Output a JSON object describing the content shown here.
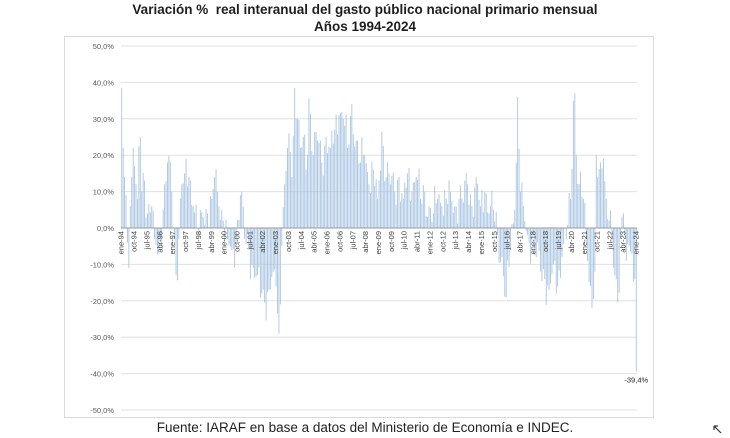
{
  "title_line1": "Variación %  real interanual del gasto público nacional primario mensual",
  "title_line2": "Años 1994-2024",
  "source": "Fuente: IARAF en base a datos del Ministerio de Economía e INDEC.",
  "colors": {
    "bar": "#a8c4e2",
    "gridline": "#e0e0e0",
    "axis_text": "#595959"
  },
  "chart_data": {
    "type": "bar",
    "title": "Variación %  real interanual del gasto público nacional primario mensual\nAños 1994-2024",
    "ylim": [
      -50,
      50
    ],
    "y_tick_step": 10,
    "y_tick_labels": [
      "50,0%",
      "40,0%",
      "30,0%",
      "20,0%",
      "10,0%",
      "0,0%",
      "-10,0%",
      "-20,0%",
      "-30,0%",
      "-40,0%",
      "-50,0%"
    ],
    "grid": "horizontal",
    "x_start": "ene-94",
    "x_tick_labels": [
      "ene-94",
      "oct-94",
      "jul-95",
      "abr-96",
      "ene-97",
      "oct-97",
      "jul-98",
      "abr-99",
      "ene-00",
      "oct-00",
      "jul-01",
      "abr-02",
      "ene-03",
      "oct-03",
      "jul-04",
      "abr-05",
      "ene-06",
      "oct-06",
      "jul-07",
      "abr-08",
      "ene-09",
      "oct-09",
      "jul-10",
      "abr-11",
      "ene-12",
      "oct-12",
      "jul-13",
      "abr-14",
      "ene-15",
      "oct-15",
      "jul-16",
      "abr-17",
      "ene-18",
      "oct-18",
      "jul-19",
      "abr-20",
      "ene-21",
      "oct-21",
      "jul-22",
      "abr-23",
      "ene-24"
    ],
    "anchors": [
      [
        "ene-94",
        38.5
      ],
      [
        "feb-94",
        22
      ],
      [
        "mar-94",
        14
      ],
      [
        "abr-94",
        9
      ],
      [
        "may-94",
        -4
      ],
      [
        "jun-94",
        -11
      ],
      [
        "jul-94",
        6
      ],
      [
        "ago-94",
        14
      ],
      [
        "sep-94",
        22
      ],
      [
        "oct-94",
        17
      ],
      [
        "nov-94",
        12
      ],
      [
        "dic-94",
        8
      ],
      [
        "feb-95",
        25
      ],
      [
        "mar-95",
        10
      ],
      [
        "may-95",
        13
      ],
      [
        "jul-95",
        4
      ],
      [
        "oct-95",
        6
      ],
      [
        "dic-95",
        -3
      ],
      [
        "mar-96",
        -7
      ],
      [
        "jun-96",
        5
      ],
      [
        "sep-96",
        18
      ],
      [
        "dic-96",
        10
      ],
      [
        "mar-97",
        -13
      ],
      [
        "may-97",
        -3
      ],
      [
        "jul-97",
        12
      ],
      [
        "sep-97",
        15
      ],
      [
        "dic-97",
        14
      ],
      [
        "mar-98",
        6
      ],
      [
        "jul-98",
        -2
      ],
      [
        "oct-98",
        3
      ],
      [
        "ene-99",
        4
      ],
      [
        "abr-99",
        8
      ],
      [
        "jun-99",
        14
      ],
      [
        "sep-99",
        6
      ],
      [
        "dic-99",
        2
      ],
      [
        "mar-00",
        -3
      ],
      [
        "jun-00",
        -6
      ],
      [
        "sep-00",
        -4
      ],
      [
        "dic-00",
        9
      ],
      [
        "mar-01",
        -3
      ],
      [
        "jun-01",
        -6
      ],
      [
        "sep-01",
        -11
      ],
      [
        "dic-01",
        -13
      ],
      [
        "mar-02",
        -18
      ],
      [
        "may-02",
        -20.5
      ],
      [
        "ago-02",
        -17
      ],
      [
        "nov-02",
        -12
      ],
      [
        "ene-03",
        -16
      ],
      [
        "mar-03",
        -29
      ],
      [
        "may-03",
        -5
      ],
      [
        "jul-03",
        12
      ],
      [
        "sep-03",
        22
      ],
      [
        "oct-03",
        26
      ],
      [
        "dic-03",
        14
      ],
      [
        "feb-04",
        38.5
      ],
      [
        "abr-04",
        30
      ],
      [
        "jun-04",
        22
      ],
      [
        "ago-04",
        25
      ],
      [
        "oct-04",
        16
      ],
      [
        "dic-04",
        35.5
      ],
      [
        "mar-05",
        20
      ],
      [
        "jun-05",
        24
      ],
      [
        "sep-05",
        18
      ],
      [
        "dic-05",
        25
      ],
      [
        "mar-06",
        22
      ],
      [
        "jun-06",
        27
      ],
      [
        "sep-06",
        31
      ],
      [
        "dic-06",
        30
      ],
      [
        "mar-07",
        22
      ],
      [
        "jun-07",
        34
      ],
      [
        "sep-07",
        24
      ],
      [
        "dic-07",
        18
      ],
      [
        "mar-08",
        20
      ],
      [
        "jun-08",
        12
      ],
      [
        "sep-08",
        16
      ],
      [
        "dic-08",
        8
      ],
      [
        "mar-09",
        26.5
      ],
      [
        "jun-09",
        14
      ],
      [
        "sep-09",
        12
      ],
      [
        "dic-09",
        10
      ],
      [
        "mar-10",
        14
      ],
      [
        "jun-10",
        8
      ],
      [
        "sep-10",
        15
      ],
      [
        "dic-10",
        10
      ],
      [
        "mar-11",
        14
      ],
      [
        "jun-11",
        8
      ],
      [
        "sep-11",
        10
      ],
      [
        "dic-11",
        6
      ],
      [
        "mar-12",
        4
      ],
      [
        "jun-12",
        8
      ],
      [
        "sep-12",
        6
      ],
      [
        "dic-12",
        8
      ],
      [
        "mar-13",
        10
      ],
      [
        "jun-13",
        6
      ],
      [
        "sep-13",
        8
      ],
      [
        "dic-13",
        7
      ],
      [
        "mar-14",
        12
      ],
      [
        "jun-14",
        6
      ],
      [
        "sep-14",
        14
      ],
      [
        "dic-14",
        6
      ],
      [
        "mar-15",
        10
      ],
      [
        "jun-15",
        4
      ],
      [
        "sep-15",
        5
      ],
      [
        "dic-15",
        -2
      ],
      [
        "mar-16",
        -8
      ],
      [
        "jun-16",
        -19
      ],
      [
        "sep-16",
        -6
      ],
      [
        "dic-16",
        5
      ],
      [
        "feb-17",
        36
      ],
      [
        "abr-17",
        10
      ],
      [
        "jun-17",
        6
      ],
      [
        "sep-17",
        -2
      ],
      [
        "dic-17",
        -4
      ],
      [
        "mar-18",
        -8
      ],
      [
        "jun-18",
        -12
      ],
      [
        "sep-18",
        -14
      ],
      [
        "dic-18",
        -17
      ],
      [
        "mar-19",
        -10
      ],
      [
        "jun-19",
        -16
      ],
      [
        "sep-19",
        -8
      ],
      [
        "dic-19",
        -3
      ],
      [
        "mar-20",
        8
      ],
      [
        "may-20",
        35
      ],
      [
        "jun-20",
        37
      ],
      [
        "jul-20",
        20
      ],
      [
        "sep-20",
        12
      ],
      [
        "dic-20",
        8
      ],
      [
        "mar-21",
        -9
      ],
      [
        "jun-21",
        -22
      ],
      [
        "ago-21",
        -12
      ],
      [
        "sep-21",
        20
      ],
      [
        "oct-21",
        14
      ],
      [
        "dic-21",
        18
      ],
      [
        "feb-22",
        19
      ],
      [
        "abr-22",
        8
      ],
      [
        "jun-22",
        2
      ],
      [
        "ago-22",
        -4
      ],
      [
        "oct-22",
        -13
      ],
      [
        "dic-22",
        -20.5
      ],
      [
        "feb-23",
        -3
      ],
      [
        "abr-23",
        4
      ],
      [
        "jun-23",
        -9
      ],
      [
        "ago-23",
        -5
      ],
      [
        "oct-23",
        -7
      ],
      [
        "dic-23",
        -14
      ],
      [
        "ene-24",
        -39.4
      ]
    ],
    "annotations": [
      {
        "at": "ene-24",
        "text": "-39,4%"
      }
    ]
  }
}
